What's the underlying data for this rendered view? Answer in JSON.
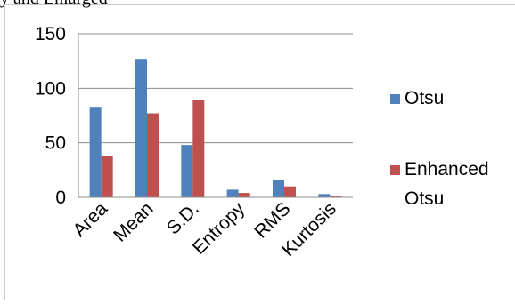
{
  "caption_fragment": "y and Enlarged",
  "chart_data": {
    "type": "bar",
    "title": "",
    "xlabel": "",
    "ylabel": "",
    "ylim": [
      0,
      150
    ],
    "yticks": [
      0,
      50,
      100,
      150
    ],
    "grid": true,
    "legend_position": "right",
    "categories": [
      "Area",
      "Mean",
      "S.D.",
      "Entropy",
      "RMS",
      "Kurtosis"
    ],
    "series": [
      {
        "name": "Otsu",
        "color": "#4F81BD",
        "values": [
          83,
          127,
          48,
          7,
          16,
          3
        ]
      },
      {
        "name": "Enhanced Otsu",
        "color": "#C0504D",
        "values": [
          38,
          77,
          89,
          4,
          10,
          1
        ]
      }
    ],
    "legend": {
      "items": [
        {
          "lines": [
            "Otsu"
          ],
          "color": "#4F81BD"
        },
        {
          "lines": [
            "Enhanced",
            "Otsu"
          ],
          "color": "#C0504D"
        }
      ]
    }
  }
}
